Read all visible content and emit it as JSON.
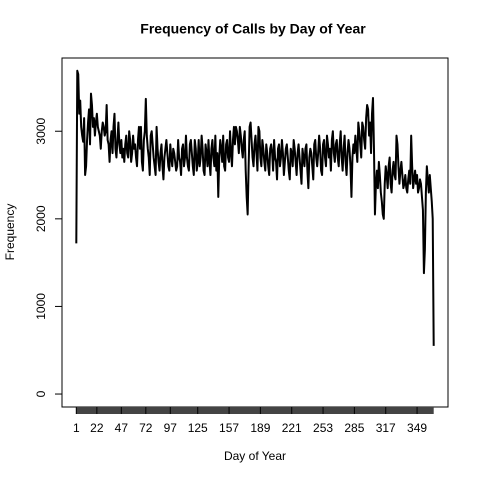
{
  "chart_data": {
    "type": "line",
    "title": "Frequency of Calls by Day of Year",
    "xlabel": "Day of Year",
    "ylabel": "Frequency",
    "color": "#000000",
    "xlim": [
      -13.6,
      380.6
    ],
    "xticks": [
      1,
      22,
      47,
      72,
      97,
      125,
      157,
      189,
      221,
      253,
      285,
      317,
      349
    ],
    "ylim": [
      -148,
      3836
    ],
    "yticks": [
      0,
      1000,
      2000,
      3000
    ],
    "x": [
      1,
      2,
      3,
      4,
      5,
      6,
      7,
      8,
      9,
      10,
      11,
      12,
      13,
      14,
      15,
      16,
      17,
      18,
      19,
      20,
      21,
      22,
      23,
      24,
      25,
      26,
      27,
      28,
      29,
      30,
      31,
      32,
      33,
      34,
      35,
      36,
      37,
      38,
      39,
      40,
      41,
      42,
      43,
      44,
      45,
      46,
      47,
      48,
      49,
      50,
      51,
      52,
      53,
      54,
      55,
      56,
      57,
      58,
      59,
      60,
      61,
      62,
      63,
      64,
      65,
      66,
      67,
      68,
      69,
      70,
      71,
      72,
      73,
      74,
      75,
      76,
      77,
      78,
      79,
      80,
      81,
      82,
      83,
      84,
      85,
      86,
      87,
      88,
      89,
      90,
      91,
      92,
      93,
      94,
      95,
      96,
      97,
      98,
      99,
      100,
      101,
      102,
      103,
      104,
      105,
      106,
      107,
      108,
      109,
      110,
      111,
      112,
      113,
      114,
      115,
      116,
      117,
      118,
      119,
      120,
      121,
      122,
      123,
      124,
      125,
      126,
      127,
      128,
      129,
      130,
      131,
      132,
      133,
      134,
      135,
      136,
      137,
      138,
      139,
      140,
      141,
      142,
      143,
      144,
      145,
      146,
      147,
      148,
      149,
      150,
      151,
      152,
      153,
      154,
      155,
      156,
      157,
      158,
      159,
      160,
      161,
      162,
      163,
      164,
      165,
      166,
      167,
      168,
      169,
      170,
      171,
      172,
      173,
      174,
      175,
      176,
      177,
      178,
      179,
      180,
      181,
      182,
      183,
      184,
      185,
      186,
      187,
      188,
      189,
      190,
      191,
      192,
      193,
      194,
      195,
      196,
      197,
      198,
      199,
      200,
      201,
      202,
      203,
      204,
      205,
      206,
      207,
      208,
      209,
      210,
      211,
      212,
      213,
      214,
      215,
      216,
      217,
      218,
      219,
      220,
      221,
      222,
      223,
      224,
      225,
      226,
      227,
      228,
      229,
      230,
      231,
      232,
      233,
      234,
      235,
      236,
      237,
      238,
      239,
      240,
      241,
      242,
      243,
      244,
      245,
      246,
      247,
      248,
      249,
      250,
      251,
      252,
      253,
      254,
      255,
      256,
      257,
      258,
      259,
      260,
      261,
      262,
      263,
      264,
      265,
      266,
      267,
      268,
      269,
      270,
      271,
      272,
      273,
      274,
      275,
      276,
      277,
      278,
      279,
      280,
      281,
      282,
      283,
      284,
      285,
      286,
      287,
      288,
      289,
      290,
      291,
      292,
      293,
      294,
      295,
      296,
      297,
      298,
      299,
      300,
      301,
      302,
      303,
      304,
      305,
      306,
      307,
      308,
      309,
      310,
      311,
      312,
      313,
      314,
      315,
      316,
      317,
      318,
      319,
      320,
      321,
      322,
      323,
      324,
      325,
      326,
      327,
      328,
      329,
      330,
      331,
      332,
      333,
      334,
      335,
      336,
      337,
      338,
      339,
      340,
      341,
      342,
      343,
      344,
      345,
      346,
      347,
      348,
      349,
      350,
      351,
      352,
      353,
      354,
      355,
      356,
      357,
      358,
      359,
      360,
      361,
      362,
      363,
      364,
      365,
      366
    ],
    "values": [
      1720,
      3690,
      3650,
      3200,
      3350,
      3050,
      2950,
      2880,
      3150,
      2500,
      2600,
      2900,
      3100,
      3250,
      2850,
      3430,
      3300,
      3050,
      3150,
      2950,
      3100,
      3200,
      3050,
      3000,
      2950,
      2800,
      3000,
      3100,
      3050,
      2950,
      3000,
      3300,
      2900,
      2850,
      2650,
      2900,
      3000,
      2750,
      3050,
      3200,
      2800,
      2700,
      2900,
      3100,
      2850,
      2750,
      2900,
      2700,
      2800,
      2650,
      2850,
      2950,
      2750,
      2700,
      3000,
      2900,
      2650,
      2750,
      2950,
      2800,
      2850,
      2700,
      2600,
      2900,
      3050,
      2800,
      3050,
      2650,
      2550,
      2900,
      3000,
      3370,
      2950,
      2800,
      2700,
      2500,
      2950,
      3000,
      2850,
      2700,
      2600,
      2500,
      3050,
      2800,
      2650,
      2550,
      2750,
      2850,
      2600,
      2450,
      2700,
      2800,
      2900,
      2750,
      2600,
      2550,
      2850,
      2700,
      2600,
      2800,
      2750,
      2650,
      2550,
      2600,
      2900,
      2700,
      2650,
      2500,
      2800,
      2850,
      2600,
      2700,
      2950,
      2700,
      2600,
      2550,
      2850,
      2900,
      2750,
      2600,
      2500,
      2900,
      2800,
      2550,
      2650,
      2900,
      2600,
      2700,
      2950,
      2800,
      2550,
      2500,
      2850,
      2750,
      2600,
      2900,
      2650,
      2500,
      2800,
      2900,
      2700,
      2600,
      2950,
      2550,
      2750,
      2250,
      2700,
      2900,
      2800,
      2650,
      2950,
      2600,
      2550,
      2850,
      2900,
      2700,
      2650,
      3000,
      2750,
      2600,
      2900,
      3050,
      2850,
      3050,
      3000,
      2900,
      2750,
      3050,
      2950,
      2800,
      2700,
      2900,
      3000,
      2550,
      2250,
      2050,
      2600,
      3050,
      3100,
      2900,
      2700,
      2600,
      2850,
      2950,
      2750,
      2550,
      3050,
      3000,
      2700,
      2600,
      2900,
      2800,
      2650,
      2550,
      2850,
      2750,
      2600,
      2500,
      2800,
      2850,
      2750,
      2550,
      2900,
      2700,
      2650,
      2450,
      2800,
      2850,
      2600,
      2700,
      2900,
      2750,
      2500,
      2650,
      2800,
      2850,
      2700,
      2550,
      2450,
      2800,
      2750,
      2600,
      2900,
      2800,
      2650,
      2500,
      2750,
      2850,
      2700,
      2550,
      2400,
      2800,
      2700,
      2600,
      2800,
      2850,
      2550,
      2350,
      2700,
      2800,
      2750,
      2600,
      2450,
      2850,
      2900,
      2700,
      2600,
      2750,
      2950,
      2800,
      2550,
      2500,
      2850,
      2900,
      2700,
      2600,
      2950,
      2850,
      2700,
      2800,
      2550,
      2900,
      3000,
      2750,
      2650,
      2850,
      2900,
      2700,
      2600,
      2850,
      3000,
      2700,
      2550,
      2800,
      2950,
      2650,
      2500,
      2750,
      2900,
      2800,
      2600,
      2250,
      2700,
      2850,
      2750,
      2950,
      2800,
      2650,
      3100,
      3000,
      2850,
      2700,
      3100,
      3050,
      2900,
      2800,
      3150,
      3300,
      3250,
      2950,
      3100,
      2750,
      3200,
      3380,
      2800,
      2050,
      2400,
      2550,
      2350,
      2650,
      2500,
      2300,
      2200,
      2050,
      2000,
      2400,
      2600,
      2500,
      2350,
      2600,
      2700,
      2400,
      2300,
      2550,
      2650,
      2500,
      2450,
      2950,
      2850,
      2600,
      2400,
      2550,
      2650,
      2500,
      2350,
      2400,
      2500,
      2350,
      2300,
      2450,
      2550,
      2400,
      2950,
      2600,
      2350,
      2450,
      2550,
      2400,
      2500,
      2300,
      2350,
      2450,
      2400,
      2250,
      2100,
      1380,
      1650,
      2300,
      2600,
      2450,
      2300,
      2500,
      2350,
      2200,
      2000,
      550
    ]
  }
}
